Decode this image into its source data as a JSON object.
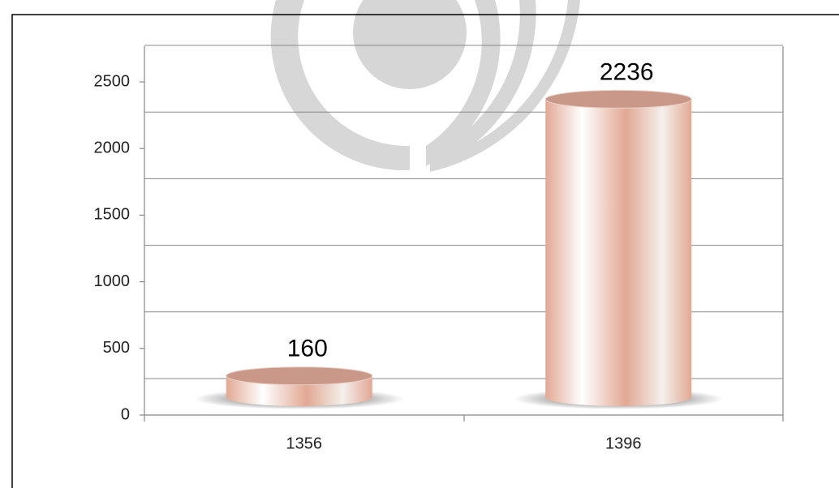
{
  "chart_data": {
    "type": "cylinder",
    "categories": [
      "1356",
      "1396"
    ],
    "values": [
      160,
      2236
    ],
    "color": "#e2a894",
    "ylim": [
      0,
      2500
    ],
    "yticks": [
      0,
      500,
      1000,
      1500,
      2000,
      2500
    ],
    "grid": true
  }
}
